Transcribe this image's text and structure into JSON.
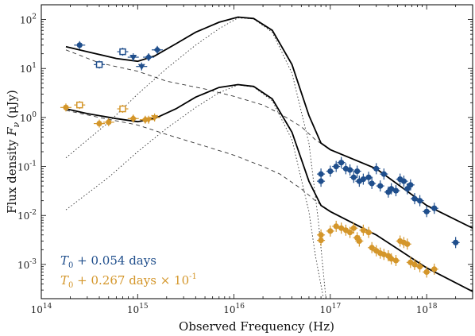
{
  "chart_data": {
    "type": "scatter",
    "xlabel": "Observed Frequency (Hz)",
    "ylabel": "Flux density F_ν (μJy)",
    "xscale": "log",
    "yscale": "log",
    "xlim": [
      100000000000000.0,
      3e+18
    ],
    "ylim": [
      0.0002,
      200
    ],
    "x_ticks": [
      100000000000000.0,
      1000000000000000.0,
      1e+16,
      1e+17,
      1e+18
    ],
    "x_tick_labels": [
      "10^14",
      "10^15",
      "10^16",
      "10^17",
      "10^18"
    ],
    "y_ticks": [
      0.001,
      0.01,
      0.1,
      1,
      10,
      100
    ],
    "y_tick_labels": [
      "10^-3",
      "10^-2",
      "10^-1",
      "10^0",
      "10^1",
      "10^2"
    ],
    "legend_position": "bottom-left",
    "colors": {
      "epoch1": "#1f4e8c",
      "epoch2": "#d4962a",
      "model": "#000000"
    },
    "series": [
      {
        "name": "T0 + 0.054 days",
        "legend_text": "T_0 + 0.054 days",
        "color": "#1f4e8c",
        "points": [
          {
            "x": 250000000000000.0,
            "y": 30,
            "m": "circle"
          },
          {
            "x": 400000000000000.0,
            "y": 12,
            "m": "square-open"
          },
          {
            "x": 700000000000000.0,
            "y": 22,
            "m": "square-open"
          },
          {
            "x": 900000000000000.0,
            "y": 17,
            "m": "triangle"
          },
          {
            "x": 1100000000000000.0,
            "y": 11,
            "m": "triangle"
          },
          {
            "x": 1300000000000000.0,
            "y": 17,
            "m": "diamond"
          },
          {
            "x": 1600000000000000.0,
            "y": 24,
            "m": "diamond"
          },
          {
            "x": 8e+16,
            "y": 0.07,
            "m": "circle"
          },
          {
            "x": 8e+16,
            "y": 0.05,
            "m": "circle"
          },
          {
            "x": 1e+17,
            "y": 0.08,
            "m": "circle"
          },
          {
            "x": 1.15e+17,
            "y": 0.1,
            "m": "circle"
          },
          {
            "x": 1.3e+17,
            "y": 0.12,
            "m": "circle"
          },
          {
            "x": 1.45e+17,
            "y": 0.09,
            "m": "circle"
          },
          {
            "x": 1.6e+17,
            "y": 0.085,
            "m": "circle"
          },
          {
            "x": 1.75e+17,
            "y": 0.06,
            "m": "circle"
          },
          {
            "x": 1.9e+17,
            "y": 0.08,
            "m": "circle"
          },
          {
            "x": 2e+17,
            "y": 0.05,
            "m": "circle"
          },
          {
            "x": 2.2e+17,
            "y": 0.055,
            "m": "circle"
          },
          {
            "x": 2.5e+17,
            "y": 0.06,
            "m": "circle"
          },
          {
            "x": 2.7e+17,
            "y": 0.045,
            "m": "circle"
          },
          {
            "x": 3e+17,
            "y": 0.09,
            "m": "circle"
          },
          {
            "x": 3.3e+17,
            "y": 0.04,
            "m": "circle"
          },
          {
            "x": 3.6e+17,
            "y": 0.07,
            "m": "circle"
          },
          {
            "x": 4e+17,
            "y": 0.03,
            "m": "circle"
          },
          {
            "x": 4.3e+17,
            "y": 0.035,
            "m": "circle"
          },
          {
            "x": 4.8e+17,
            "y": 0.032,
            "m": "circle"
          },
          {
            "x": 5.3e+17,
            "y": 0.055,
            "m": "circle"
          },
          {
            "x": 5.8e+17,
            "y": 0.05,
            "m": "circle"
          },
          {
            "x": 6.3e+17,
            "y": 0.035,
            "m": "circle"
          },
          {
            "x": 6.8e+17,
            "y": 0.042,
            "m": "circle"
          },
          {
            "x": 7.5e+17,
            "y": 0.022,
            "m": "circle"
          },
          {
            "x": 8.5e+17,
            "y": 0.02,
            "m": "circle"
          },
          {
            "x": 1e+18,
            "y": 0.012,
            "m": "circle"
          },
          {
            "x": 1.2e+18,
            "y": 0.014,
            "m": "circle"
          },
          {
            "x": 2e+18,
            "y": 0.0028,
            "m": "circle"
          }
        ],
        "upper_limits": [
          0,
          1,
          2,
          3,
          4
        ],
        "model": [
          [
            180000000000000.0,
            28
          ],
          [
            300000000000000.0,
            22
          ],
          [
            600000000000000.0,
            16
          ],
          [
            1000000000000000.0,
            14
          ],
          [
            1500000000000000.0,
            18
          ],
          [
            2500000000000000.0,
            32
          ],
          [
            4000000000000000.0,
            55
          ],
          [
            7000000000000000.0,
            88
          ],
          [
            1.1e+16,
            112
          ],
          [
            1.6e+16,
            105
          ],
          [
            2.5e+16,
            60
          ],
          [
            4e+16,
            12
          ],
          [
            6e+16,
            1.1
          ],
          [
            8e+16,
            0.3
          ],
          [
            1e+17,
            0.22
          ],
          [
            3e+17,
            0.09
          ],
          [
            1e+18,
            0.016
          ],
          [
            3e+18,
            0.0055
          ]
        ],
        "dashed": [
          [
            180000000000000.0,
            24
          ],
          [
            400000000000000.0,
            13
          ],
          [
            1000000000000000.0,
            8.8
          ],
          [
            2000000000000000.0,
            5.5
          ],
          [
            5000000000000000.0,
            3.8
          ],
          [
            1e+16,
            2.7
          ],
          [
            2e+16,
            1.8
          ],
          [
            3e+16,
            1.2
          ],
          [
            5e+16,
            0.65
          ],
          [
            7e+16,
            0.35
          ],
          [
            1e+17,
            0.22
          ],
          [
            3e+17,
            0.09
          ],
          [
            1e+18,
            0.016
          ],
          [
            3e+18,
            0.0055
          ]
        ],
        "dotted": [
          [
            180000000000000.0,
            0.15
          ],
          [
            500000000000000.0,
            0.8
          ],
          [
            1000000000000000.0,
            3
          ],
          [
            2000000000000000.0,
            10
          ],
          [
            4000000000000000.0,
            30
          ],
          [
            7000000000000000.0,
            65
          ],
          [
            1.1e+16,
            108
          ],
          [
            1.6e+16,
            103
          ],
          [
            2.5e+16,
            55
          ],
          [
            4e+16,
            8
          ],
          [
            6e+16,
            0.3
          ],
          [
            7.5e+16,
            0.008
          ],
          [
            9e+16,
            0.0002
          ]
        ]
      },
      {
        "name": "T0 + 0.267 days × 10^-1",
        "legend_text": "T_0 + 0.267 days × 10^-1",
        "color": "#d4962a",
        "points": [
          {
            "x": 180000000000000.0,
            "y": 1.6,
            "m": "circle"
          },
          {
            "x": 250000000000000.0,
            "y": 1.8,
            "m": "square-open"
          },
          {
            "x": 400000000000000.0,
            "y": 0.75,
            "m": "circle"
          },
          {
            "x": 500000000000000.0,
            "y": 0.8,
            "m": "circle"
          },
          {
            "x": 700000000000000.0,
            "y": 1.5,
            "m": "square-open"
          },
          {
            "x": 900000000000000.0,
            "y": 0.95,
            "m": "diamond"
          },
          {
            "x": 1200000000000000.0,
            "y": 0.9,
            "m": "diamond"
          },
          {
            "x": 1300000000000000.0,
            "y": 0.9,
            "m": "triangle"
          },
          {
            "x": 1500000000000000.0,
            "y": 1.0,
            "m": "triangle"
          },
          {
            "x": 8e+16,
            "y": 0.004,
            "m": "circle"
          },
          {
            "x": 8e+16,
            "y": 0.0031,
            "m": "circle"
          },
          {
            "x": 1e+17,
            "y": 0.0048,
            "m": "circle"
          },
          {
            "x": 1.15e+17,
            "y": 0.006,
            "m": "circle"
          },
          {
            "x": 1.3e+17,
            "y": 0.0055,
            "m": "circle"
          },
          {
            "x": 1.45e+17,
            "y": 0.005,
            "m": "circle"
          },
          {
            "x": 1.6e+17,
            "y": 0.0045,
            "m": "circle"
          },
          {
            "x": 1.75e+17,
            "y": 0.0055,
            "m": "circle"
          },
          {
            "x": 1.9e+17,
            "y": 0.0035,
            "m": "circle"
          },
          {
            "x": 2e+17,
            "y": 0.003,
            "m": "circle"
          },
          {
            "x": 2.2e+17,
            "y": 0.005,
            "m": "circle"
          },
          {
            "x": 2.5e+17,
            "y": 0.0045,
            "m": "circle"
          },
          {
            "x": 2.7e+17,
            "y": 0.0022,
            "m": "circle"
          },
          {
            "x": 3e+17,
            "y": 0.0019,
            "m": "circle"
          },
          {
            "x": 3.3e+17,
            "y": 0.0017,
            "m": "circle"
          },
          {
            "x": 3.6e+17,
            "y": 0.0016,
            "m": "circle"
          },
          {
            "x": 4e+17,
            "y": 0.0015,
            "m": "circle"
          },
          {
            "x": 4.3e+17,
            "y": 0.0013,
            "m": "circle"
          },
          {
            "x": 4.8e+17,
            "y": 0.0012,
            "m": "circle"
          },
          {
            "x": 5.3e+17,
            "y": 0.003,
            "m": "circle"
          },
          {
            "x": 5.8e+17,
            "y": 0.0028,
            "m": "circle"
          },
          {
            "x": 6.3e+17,
            "y": 0.0026,
            "m": "circle"
          },
          {
            "x": 6.8e+17,
            "y": 0.0011,
            "m": "circle"
          },
          {
            "x": 7.5e+17,
            "y": 0.001,
            "m": "circle"
          },
          {
            "x": 8.5e+17,
            "y": 0.0009,
            "m": "circle"
          },
          {
            "x": 1e+18,
            "y": 0.0007,
            "m": "circle"
          },
          {
            "x": 1.2e+18,
            "y": 0.0008,
            "m": "circle"
          }
        ],
        "upper_limits": [
          7,
          8
        ],
        "model": [
          [
            180000000000000.0,
            1.5
          ],
          [
            300000000000000.0,
            1.2
          ],
          [
            600000000000000.0,
            0.95
          ],
          [
            1000000000000000.0,
            0.82
          ],
          [
            1500000000000000.0,
            0.95
          ],
          [
            2500000000000000.0,
            1.5
          ],
          [
            4000000000000000.0,
            2.6
          ],
          [
            7000000000000000.0,
            4.1
          ],
          [
            1.1e+16,
            4.7
          ],
          [
            1.6e+16,
            4.3
          ],
          [
            2.5e+16,
            2.4
          ],
          [
            4e+16,
            0.5
          ],
          [
            6e+16,
            0.05
          ],
          [
            8e+16,
            0.016
          ],
          [
            1e+17,
            0.012
          ],
          [
            3e+17,
            0.004
          ],
          [
            1e+18,
            0.00085
          ],
          [
            3e+18,
            0.00028
          ]
        ],
        "dashed": [
          [
            180000000000000.0,
            1.4
          ],
          [
            400000000000000.0,
            1.0
          ],
          [
            1000000000000000.0,
            0.7
          ],
          [
            2000000000000000.0,
            0.45
          ],
          [
            5000000000000000.0,
            0.26
          ],
          [
            1e+16,
            0.17
          ],
          [
            2e+16,
            0.1
          ],
          [
            3e+16,
            0.07
          ],
          [
            5e+16,
            0.035
          ],
          [
            7e+16,
            0.02
          ],
          [
            1e+17,
            0.012
          ],
          [
            3e+17,
            0.004
          ],
          [
            1e+18,
            0.00085
          ],
          [
            3e+18,
            0.00028
          ]
        ],
        "dotted": [
          [
            180000000000000.0,
            0.013
          ],
          [
            500000000000000.0,
            0.06
          ],
          [
            1000000000000000.0,
            0.2
          ],
          [
            2000000000000000.0,
            0.6
          ],
          [
            4000000000000000.0,
            1.6
          ],
          [
            7000000000000000.0,
            3.2
          ],
          [
            1.1e+16,
            4.6
          ],
          [
            1.6e+16,
            4.2
          ],
          [
            2.5e+16,
            2.2
          ],
          [
            4e+16,
            0.35
          ],
          [
            6e+16,
            0.012
          ],
          [
            7e+16,
            0.0015
          ],
          [
            8.5e+16,
            0.0002
          ]
        ]
      }
    ]
  }
}
